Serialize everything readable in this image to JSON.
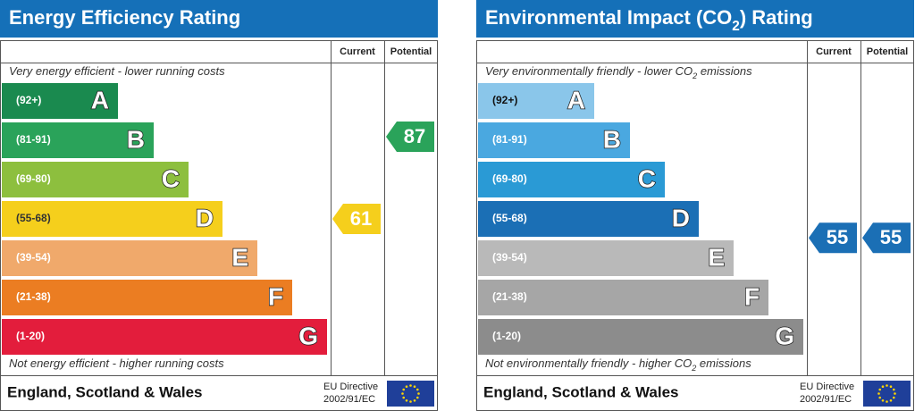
{
  "panels": [
    {
      "title": [
        {
          "text": "Energy Efficiency Rating"
        }
      ],
      "column_headers": [
        "Current",
        "Potential"
      ],
      "top_note": [
        {
          "text": "Very energy efficient - lower running costs"
        }
      ],
      "bottom_note": [
        {
          "text": "Not energy efficient - higher running costs"
        }
      ],
      "bands": [
        {
          "range": "(92+)",
          "letter": "A",
          "color": "#1a8a4f",
          "text_color": "#ffffff"
        },
        {
          "range": "(81-91)",
          "letter": "B",
          "color": "#2aa35a",
          "text_color": "#ffffff"
        },
        {
          "range": "(69-80)",
          "letter": "C",
          "color": "#8dbf3e",
          "text_color": "#ffffff"
        },
        {
          "range": "(55-68)",
          "letter": "D",
          "color": "#f5cf1c",
          "text_color": "#333333"
        },
        {
          "range": "(39-54)",
          "letter": "E",
          "color": "#f0a96b",
          "text_color": "#ffffff"
        },
        {
          "range": "(21-38)",
          "letter": "F",
          "color": "#eb7d22",
          "text_color": "#ffffff"
        },
        {
          "range": "(1-20)",
          "letter": "G",
          "color": "#e31d3c",
          "text_color": "#ffffff"
        }
      ],
      "current": 61,
      "potential": 87,
      "footer": "England, Scotland & Wales",
      "directive": [
        "EU Directive",
        "2002/91/EC"
      ]
    },
    {
      "title": [
        {
          "text": "Environmental Impact (CO"
        },
        {
          "text": "2",
          "sub": true
        },
        {
          "text": ") Rating"
        }
      ],
      "column_headers": [
        "Current",
        "Potential"
      ],
      "top_note": [
        {
          "text": "Very environmentally friendly - lower CO"
        },
        {
          "text": "2",
          "sub": true
        },
        {
          "text": " emissions"
        }
      ],
      "bottom_note": [
        {
          "text": "Not environmentally friendly - higher CO"
        },
        {
          "text": "2",
          "sub": true
        },
        {
          "text": " emissions"
        }
      ],
      "bands": [
        {
          "range": "(92+)",
          "letter": "A",
          "color": "#8ac6ea",
          "text_color": "#111111"
        },
        {
          "range": "(81-91)",
          "letter": "B",
          "color": "#4aa8e0",
          "text_color": "#ffffff"
        },
        {
          "range": "(69-80)",
          "letter": "C",
          "color": "#2a9ad5",
          "text_color": "#ffffff"
        },
        {
          "range": "(55-68)",
          "letter": "D",
          "color": "#1b6fb5",
          "text_color": "#ffffff"
        },
        {
          "range": "(39-54)",
          "letter": "E",
          "color": "#b9b9b9",
          "text_color": "#ffffff"
        },
        {
          "range": "(21-38)",
          "letter": "F",
          "color": "#a6a6a6",
          "text_color": "#ffffff"
        },
        {
          "range": "(1-20)",
          "letter": "G",
          "color": "#8c8c8c",
          "text_color": "#ffffff"
        }
      ],
      "current": 55,
      "potential": 55,
      "footer": "England, Scotland & Wales",
      "directive": [
        "EU Directive",
        "2002/91/EC"
      ]
    }
  ]
}
